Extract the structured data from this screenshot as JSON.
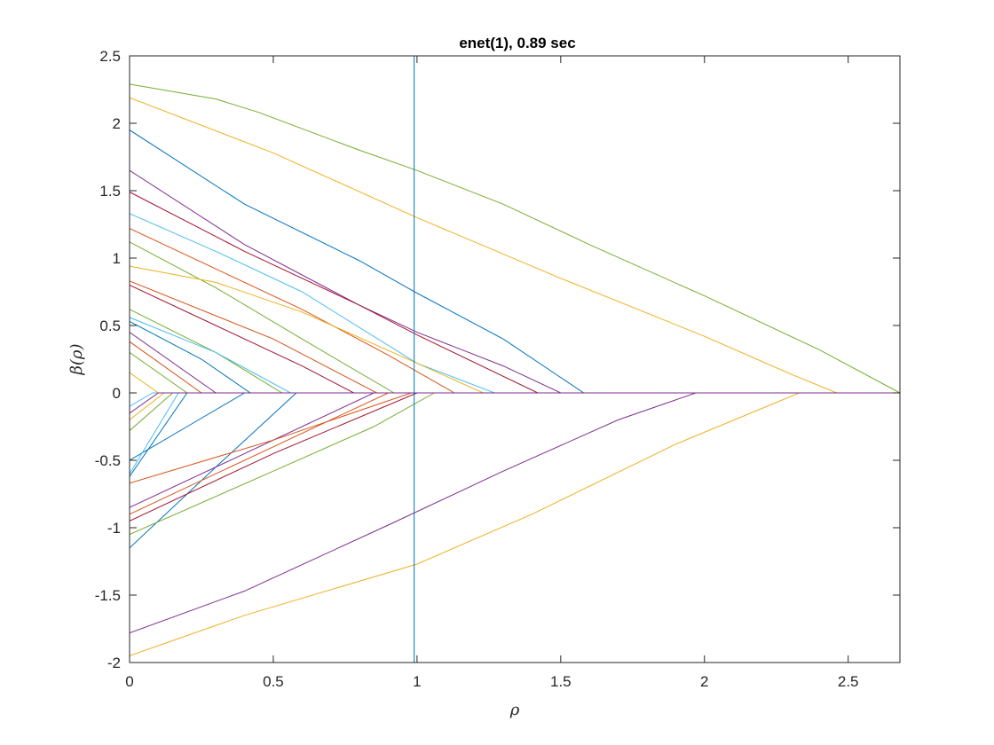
{
  "chart_data": {
    "type": "line",
    "title": "enet(1), 0.89 sec",
    "xlabel": "ρ",
    "ylabel": "β(ρ)",
    "xlim": [
      0,
      2.68
    ],
    "ylim": [
      -2,
      2.5
    ],
    "xticks": [
      0,
      0.5,
      1,
      1.5,
      2,
      2.5
    ],
    "xtick_labels": [
      "0",
      "0.5",
      "1",
      "1.5",
      "2",
      "2.5"
    ],
    "yticks": [
      -2,
      -1.5,
      -1,
      -0.5,
      0,
      0.5,
      1,
      1.5,
      2,
      2.5
    ],
    "ytick_labels": [
      "-2",
      "-1.5",
      "-1",
      "-0.5",
      "0",
      "0.5",
      "1",
      "1.5",
      "2",
      "2.5"
    ],
    "grid": false,
    "legend": "none",
    "vline": {
      "x": 0.99,
      "color": "#0072BD"
    },
    "series": [
      {
        "color": "#77AC30",
        "x": [
          0,
          0.3,
          0.45,
          0.8,
          1.0,
          1.3,
          1.6,
          2.0,
          2.4,
          2.68
        ],
        "y": [
          2.29,
          2.18,
          2.08,
          1.8,
          1.65,
          1.4,
          1.1,
          0.72,
          0.32,
          0
        ]
      },
      {
        "color": "#EDB120",
        "x": [
          0,
          0.5,
          1.0,
          1.5,
          2.0,
          2.3,
          2.46
        ],
        "y": [
          2.19,
          1.78,
          1.3,
          0.85,
          0.42,
          0.14,
          0
        ]
      },
      {
        "color": "#0072BD",
        "x": [
          0,
          0.4,
          0.8,
          1.0,
          1.3,
          1.58
        ],
        "y": [
          1.95,
          1.4,
          0.98,
          0.74,
          0.4,
          0
        ]
      },
      {
        "color": "#7E2F8E",
        "x": [
          0,
          0.4,
          0.8,
          1.0,
          1.3,
          1.5
        ],
        "y": [
          1.65,
          1.1,
          0.65,
          0.45,
          0.2,
          0
        ]
      },
      {
        "color": "#A2142F",
        "x": [
          0,
          0.4,
          0.8,
          1.0,
          1.42
        ],
        "y": [
          1.49,
          1.05,
          0.65,
          0.43,
          0
        ]
      },
      {
        "color": "#4DBEEE",
        "x": [
          0,
          0.3,
          0.6,
          1.0,
          1.27
        ],
        "y": [
          1.33,
          1.05,
          0.75,
          0.22,
          0
        ]
      },
      {
        "color": "#D95319",
        "x": [
          0,
          0.3,
          0.6,
          0.9,
          1.13
        ],
        "y": [
          1.22,
          0.92,
          0.62,
          0.28,
          0
        ]
      },
      {
        "color": "#77AC30",
        "x": [
          0,
          0.3,
          0.6,
          0.92
        ],
        "y": [
          1.12,
          0.78,
          0.4,
          0
        ]
      },
      {
        "color": "#EDB120",
        "x": [
          0,
          0.3,
          0.6,
          1.0,
          1.23
        ],
        "y": [
          0.94,
          0.82,
          0.6,
          0.22,
          0
        ]
      },
      {
        "color": "#D95319",
        "x": [
          0,
          0.5,
          0.86
        ],
        "y": [
          0.83,
          0.4,
          0
        ]
      },
      {
        "color": "#A2142F",
        "x": [
          0,
          0.3,
          0.6,
          0.78
        ],
        "y": [
          0.8,
          0.5,
          0.2,
          0
        ]
      },
      {
        "color": "#77AC30",
        "x": [
          0,
          0.3,
          0.53
        ],
        "y": [
          0.62,
          0.3,
          0
        ]
      },
      {
        "color": "#4DBEEE",
        "x": [
          0,
          0.3,
          0.56
        ],
        "y": [
          0.56,
          0.3,
          0
        ]
      },
      {
        "color": "#0072BD",
        "x": [
          0,
          0.25,
          0.42
        ],
        "y": [
          0.53,
          0.25,
          0
        ]
      },
      {
        "color": "#7E2F8E",
        "x": [
          0,
          0.3
        ],
        "y": [
          0.45,
          0
        ]
      },
      {
        "color": "#D95319",
        "x": [
          0,
          0.25
        ],
        "y": [
          0.38,
          0
        ]
      },
      {
        "color": "#77AC30",
        "x": [
          0,
          0.2
        ],
        "y": [
          0.3,
          0
        ]
      },
      {
        "color": "#EDB120",
        "x": [
          0,
          0.1
        ],
        "y": [
          0.15,
          0
        ]
      },
      {
        "color": "#7E2F8E",
        "x": [
          0,
          0.4,
          0.9,
          1.3,
          1.7,
          1.97
        ],
        "y": [
          -1.78,
          -1.47,
          -0.98,
          -0.58,
          -0.2,
          0
        ]
      },
      {
        "color": "#EDB120",
        "x": [
          0,
          0.4,
          1.0,
          1.4,
          1.9,
          2.33
        ],
        "y": [
          -1.95,
          -1.65,
          -1.27,
          -0.9,
          -0.38,
          0
        ]
      },
      {
        "color": "#0072BD",
        "x": [
          0,
          0.3,
          0.58
        ],
        "y": [
          -1.15,
          -0.55,
          0
        ]
      },
      {
        "color": "#77AC30",
        "x": [
          0,
          0.5,
          0.85,
          1.06
        ],
        "y": [
          -1.05,
          -0.58,
          -0.25,
          0
        ]
      },
      {
        "color": "#A2142F",
        "x": [
          0,
          0.5,
          1.0
        ],
        "y": [
          -0.95,
          -0.45,
          0
        ]
      },
      {
        "color": "#D95319",
        "x": [
          0,
          0.5,
          0.9
        ],
        "y": [
          -0.9,
          -0.4,
          0
        ]
      },
      {
        "color": "#7E2F8E",
        "x": [
          0,
          0.4,
          0.85
        ],
        "y": [
          -0.85,
          -0.45,
          0
        ]
      },
      {
        "color": "#D95319",
        "x": [
          0,
          0.5,
          0.98
        ],
        "y": [
          -0.67,
          -0.35,
          0
        ]
      },
      {
        "color": "#0072BD",
        "x": [
          0,
          0.2,
          0.4
        ],
        "y": [
          -0.5,
          -0.25,
          0
        ]
      },
      {
        "color": "#4DBEEE",
        "x": [
          0,
          0.17
        ],
        "y": [
          -0.6,
          0
        ]
      },
      {
        "color": "#0072BD",
        "x": [
          0,
          0.2
        ],
        "y": [
          -0.62,
          0
        ]
      },
      {
        "color": "#77AC30",
        "x": [
          0,
          0.15
        ],
        "y": [
          -0.28,
          0
        ]
      },
      {
        "color": "#EDB120",
        "x": [
          0,
          0.12
        ],
        "y": [
          -0.2,
          0
        ]
      },
      {
        "color": "#4DBEEE",
        "x": [
          0,
          0.08
        ],
        "y": [
          -0.1,
          0
        ]
      },
      {
        "color": "#7E2F8E",
        "x": [
          0,
          0.1
        ],
        "y": [
          -0.15,
          0
        ]
      }
    ]
  }
}
